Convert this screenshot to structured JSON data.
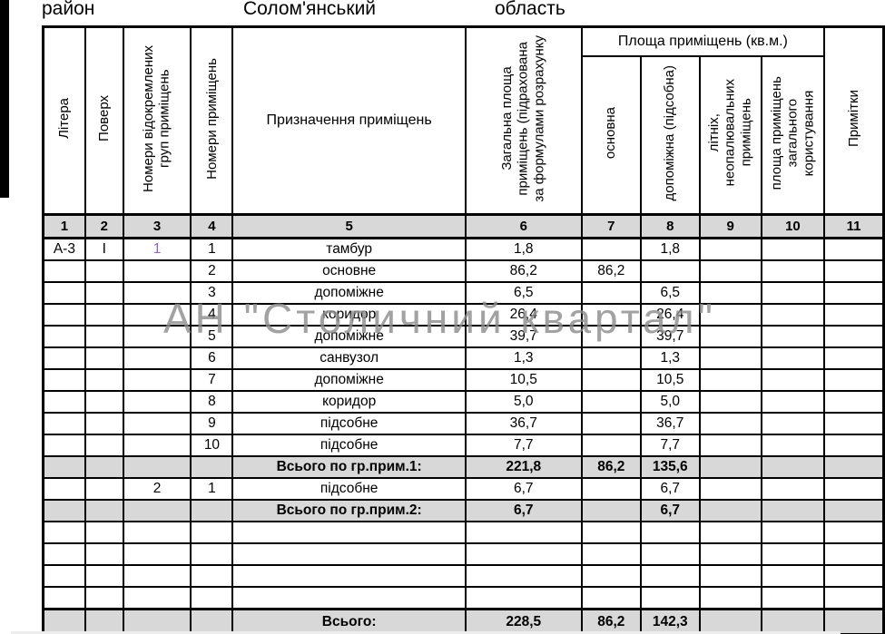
{
  "page": {
    "district_label": "район",
    "district_value": "Солом'янський",
    "region_label": "область",
    "region_value": ""
  },
  "watermark": {
    "text": "АН \"Столичний квартал\""
  },
  "colors": {
    "header_fill": "#d8d8d8",
    "border": "#000000",
    "group_number_accent": "#9166bc",
    "watermark_gray": "#8e8e8e"
  },
  "table": {
    "headers": {
      "litera": "Літера",
      "poverh": "Поверх",
      "group_numbers": "Номери відокремлених\nгруп приміщень",
      "room_numbers": "Номери приміщень",
      "purpose": "Призначення приміщень",
      "total_area": "Загальна площа\nприміщень (підрахована\nза формулами розрахунку",
      "area_group": "Площа приміщень (кв.м.)",
      "main": "основна",
      "auxiliary": "допоміжна (підсобна)",
      "summer": "літніх,\nнеопалювальних\nприміщень",
      "common": "площа приміщень\nзагального\nкористування",
      "notes": "Примітки"
    },
    "column_numbers": [
      "1",
      "2",
      "3",
      "4",
      "5",
      "6",
      "7",
      "8",
      "9",
      "10",
      "11"
    ],
    "rows": [
      {
        "litera": "А-3",
        "poverh": "І",
        "group": "1",
        "group_colored": true,
        "room": "1",
        "purpose": "тамбур",
        "total": "1,8",
        "main": "",
        "aux": "1,8",
        "summer": "",
        "common": "",
        "notes": ""
      },
      {
        "litera": "",
        "poverh": "",
        "group": "",
        "room": "2",
        "purpose": "основне",
        "total": "86,2",
        "main": "86,2",
        "aux": "",
        "summer": "",
        "common": "",
        "notes": ""
      },
      {
        "litera": "",
        "poverh": "",
        "group": "",
        "room": "3",
        "purpose": "допоміжне",
        "total": "6,5",
        "main": "",
        "aux": "6,5",
        "summer": "",
        "common": "",
        "notes": ""
      },
      {
        "litera": "",
        "poverh": "",
        "group": "",
        "room": "4",
        "purpose": "коридор",
        "total": "26,4",
        "main": "",
        "aux": "26,4",
        "summer": "",
        "common": "",
        "notes": ""
      },
      {
        "litera": "",
        "poverh": "",
        "group": "",
        "room": "5",
        "purpose": "допоміжне",
        "total": "39,7",
        "main": "",
        "aux": "39,7",
        "summer": "",
        "common": "",
        "notes": ""
      },
      {
        "litera": "",
        "poverh": "",
        "group": "",
        "room": "6",
        "purpose": "санвузол",
        "total": "1,3",
        "main": "",
        "aux": "1,3",
        "summer": "",
        "common": "",
        "notes": ""
      },
      {
        "litera": "",
        "poverh": "",
        "group": "",
        "room": "7",
        "purpose": "допоміжне",
        "total": "10,5",
        "main": "",
        "aux": "10,5",
        "summer": "",
        "common": "",
        "notes": ""
      },
      {
        "litera": "",
        "poverh": "",
        "group": "",
        "room": "8",
        "purpose": "коридор",
        "total": "5,0",
        "main": "",
        "aux": "5,0",
        "summer": "",
        "common": "",
        "notes": ""
      },
      {
        "litera": "",
        "poverh": "",
        "group": "",
        "room": "9",
        "purpose": "підсобне",
        "total": "36,7",
        "main": "",
        "aux": "36,7",
        "summer": "",
        "common": "",
        "notes": ""
      },
      {
        "litera": "",
        "poverh": "",
        "group": "",
        "room": "10",
        "purpose": "підсобне",
        "total": "7,7",
        "main": "",
        "aux": "7,7",
        "summer": "",
        "common": "",
        "notes": ""
      },
      {
        "type": "subtotal",
        "litera": "",
        "poverh": "",
        "group": "",
        "room": "",
        "purpose": "Всього по гр.прим.1:",
        "total": "221,8",
        "main": "86,2",
        "aux": "135,6",
        "summer": "",
        "common": "",
        "notes": ""
      },
      {
        "litera": "",
        "poverh": "",
        "group": "2",
        "room": "1",
        "purpose": "підсобне",
        "total": "6,7",
        "main": "",
        "aux": "6,7",
        "summer": "",
        "common": "",
        "notes": ""
      },
      {
        "type": "subtotal",
        "litera": "",
        "poverh": "",
        "group": "",
        "room": "",
        "purpose": "Всього по гр.прим.2:",
        "total": "6,7",
        "main": "",
        "aux": "6,7",
        "summer": "",
        "common": "",
        "notes": ""
      },
      {
        "type": "empty",
        "litera": "",
        "poverh": "",
        "group": "",
        "room": "",
        "purpose": "",
        "total": "",
        "main": "",
        "aux": "",
        "summer": "",
        "common": "",
        "notes": ""
      },
      {
        "type": "empty",
        "litera": "",
        "poverh": "",
        "group": "",
        "room": "",
        "purpose": "",
        "total": "",
        "main": "",
        "aux": "",
        "summer": "",
        "common": "",
        "notes": ""
      },
      {
        "type": "empty",
        "litera": "",
        "poverh": "",
        "group": "",
        "room": "",
        "purpose": "",
        "total": "",
        "main": "",
        "aux": "",
        "summer": "",
        "common": "",
        "notes": ""
      },
      {
        "type": "empty",
        "litera": "",
        "poverh": "",
        "group": "",
        "room": "",
        "purpose": "",
        "total": "",
        "main": "",
        "aux": "",
        "summer": "",
        "common": "",
        "notes": ""
      },
      {
        "type": "grand_total",
        "litera": "",
        "poverh": "",
        "group": "",
        "room": "",
        "purpose": "Всього:",
        "total": "228,5",
        "main": "86,2",
        "aux": "142,3",
        "summer": "",
        "common": "",
        "notes": ""
      }
    ]
  }
}
